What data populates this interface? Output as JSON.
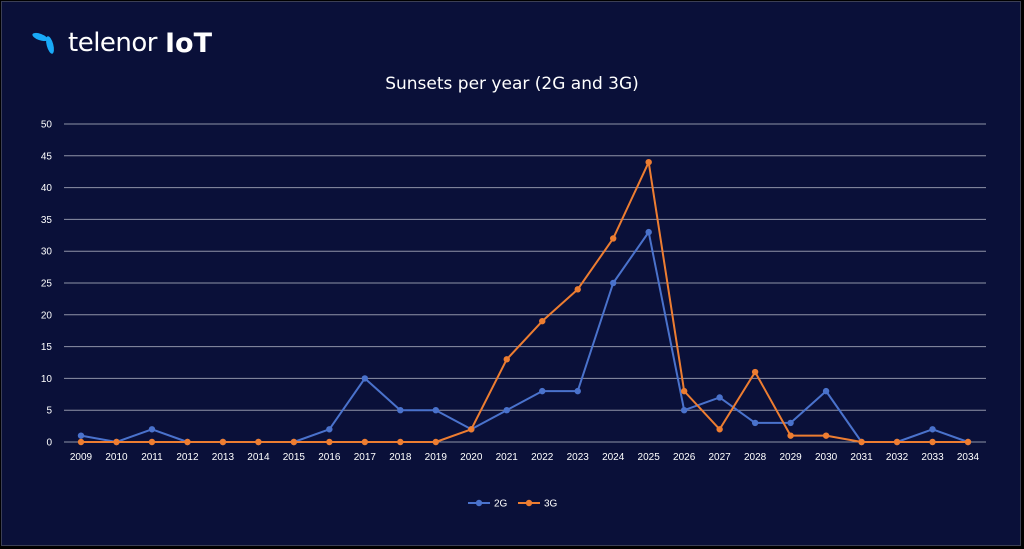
{
  "logo": {
    "brand": "telenor",
    "product": "IoT"
  },
  "colors": {
    "background": "#0a1039",
    "grid": "#8f93a8",
    "series_2g": "#4a72cc",
    "series_3g": "#ed7d31",
    "text": "#ffffff"
  },
  "chart_data": {
    "type": "line",
    "title": "Sunsets per year (2G and 3G)",
    "xlabel": "",
    "ylabel": "",
    "categories": [
      "2009",
      "2010",
      "2011",
      "2012",
      "2013",
      "2014",
      "2015",
      "2016",
      "2017",
      "2018",
      "2019",
      "2020",
      "2021",
      "2022",
      "2023",
      "2024",
      "2025",
      "2026",
      "2027",
      "2028",
      "2029",
      "2030",
      "2031",
      "2032",
      "2033",
      "2034"
    ],
    "series": [
      {
        "name": "2G",
        "color": "#4a72cc",
        "values": [
          1,
          0,
          2,
          0,
          0,
          0,
          0,
          2,
          10,
          5,
          5,
          2,
          5,
          8,
          8,
          25,
          33,
          5,
          7,
          3,
          3,
          8,
          0,
          0,
          2,
          0
        ]
      },
      {
        "name": "3G",
        "color": "#ed7d31",
        "values": [
          0,
          0,
          0,
          0,
          0,
          0,
          0,
          0,
          0,
          0,
          0,
          2,
          13,
          19,
          24,
          32,
          44,
          8,
          2,
          11,
          1,
          1,
          0,
          0,
          0,
          0
        ]
      }
    ],
    "ylim": [
      0,
      50
    ],
    "yticks": [
      0,
      5,
      10,
      15,
      20,
      25,
      30,
      35,
      40,
      45,
      50
    ],
    "grid": true,
    "legend_position": "bottom"
  }
}
